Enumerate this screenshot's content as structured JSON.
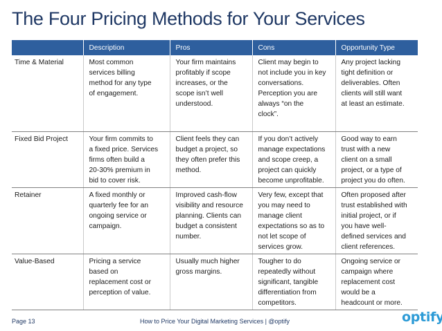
{
  "title": "The Four Pricing Methods for Your Services",
  "table": {
    "headers": [
      "",
      "Description",
      "Pros",
      "Cons",
      "Opportunity Type"
    ],
    "rows": [
      {
        "method": "Time & Material",
        "description": "Most common\nservices billing\nmethod for any type\nof engagement.",
        "pros": "Your firm maintains\nprofitably if scope\nincreases, or the\nscope isn’t well\nunderstood.",
        "cons": "Client may begin to\nnot include you in key\nconversations.\nPerception you are\nalways “on the\nclock”.",
        "opportunity": "Any project lacking\ntight definition or\ndeliverables. Often\nclients will still want\nat least an estimate."
      },
      {
        "method": "Fixed Bid Project",
        "description": "Your firm commits to\na fixed price. Services\nfirms often build a\n20-30% premium in\nbid to cover risk.",
        "pros": "Client feels they can\nbudget a project, so\nthey often prefer this\nmethod.",
        "cons": "If you don’t actively\nmanage expectations\nand scope creep, a\nproject can quickly\nbecome unprofitable.",
        "opportunity": "Good way to earn\ntrust with a new\nclient on a small\nproject, or a type of\nproject you do often."
      },
      {
        "method": "Retainer",
        "description": "A fixed monthly or\nquarterly fee for an\nongoing service or\ncampaign.",
        "pros": "Improved cash-flow\nvisibility and resource\nplanning. Clients can\nbudget a consistent\nnumber.",
        "cons": "Very few, except that\nyou may need to\nmanage client\nexpectations so as to\nnot let scope of\nservices grow.",
        "opportunity": "Often proposed after\ntrust established with\ninitial project, or if\nyou have well-\ndefined services and\nclient references."
      },
      {
        "method": "Value-Based",
        "description": "Pricing a service\nbased on\nreplacement cost or\nperception of value.",
        "pros": "Usually much higher\ngross margins.",
        "cons": "Tougher to do\nrepeatedly without\nsignificant, tangible\ndifferentiation from\ncompetitors.",
        "opportunity": "Ongoing service or\ncampaign where\nreplacement cost\nwould be a\nheadcount or more."
      }
    ]
  },
  "footer": {
    "page": "Page 13",
    "center": "How to Price Your Digital Marketing Services | @optify"
  },
  "logo_text": "optify",
  "colors": {
    "title": "#1f3864",
    "header_bg": "#2e5f9e",
    "logo": "#2d9bd6"
  }
}
